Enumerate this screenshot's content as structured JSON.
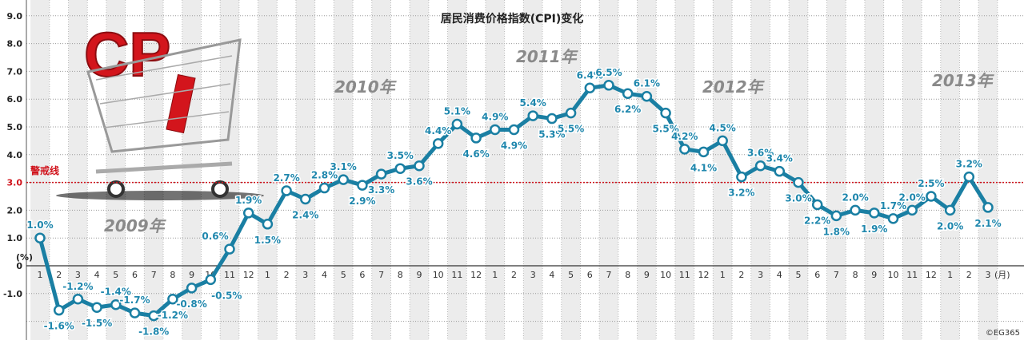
{
  "chart_data": {
    "type": "line",
    "title": "居民消费价格指数(CPI)变化",
    "ylabel": "(%)",
    "xunit": "(月)",
    "ylim": [
      -2,
      9
    ],
    "yticks": [
      "9.0",
      "8.0",
      "7.0",
      "6.0",
      "5.0",
      "4.0",
      "3.0",
      "2.0",
      "1.0",
      "0",
      "-1.0"
    ],
    "ytick_values": [
      9,
      8,
      7,
      6,
      5,
      4,
      3,
      2,
      1,
      0,
      -1
    ],
    "grid": true,
    "line_color": "#1a7fa3",
    "threshold": {
      "label": "警戒线",
      "value": 3.0,
      "color": "#d0121b"
    },
    "years": [
      "2009年",
      "2010年",
      "2011年",
      "2012年",
      "2013年"
    ],
    "x": [
      "1",
      "2",
      "3",
      "4",
      "5",
      "6",
      "7",
      "8",
      "9",
      "10",
      "11",
      "12",
      "1",
      "2",
      "3",
      "4",
      "5",
      "6",
      "7",
      "8",
      "9",
      "10",
      "11",
      "12",
      "1",
      "2",
      "3",
      "4",
      "5",
      "6",
      "7",
      "8",
      "9",
      "10",
      "11",
      "12",
      "1",
      "2",
      "3",
      "4",
      "5",
      "6",
      "7",
      "8",
      "9",
      "10",
      "11",
      "12",
      "1",
      "2",
      "3"
    ],
    "values": [
      1.0,
      -1.6,
      -1.2,
      -1.5,
      -1.4,
      -1.7,
      -1.8,
      -1.2,
      -0.8,
      -0.5,
      0.6,
      1.9,
      1.5,
      2.7,
      2.4,
      2.8,
      3.1,
      2.9,
      3.3,
      3.5,
      3.6,
      4.4,
      5.1,
      4.6,
      4.9,
      4.9,
      5.4,
      5.3,
      5.5,
      6.4,
      6.5,
      6.2,
      6.1,
      5.5,
      4.2,
      4.1,
      4.5,
      3.2,
      3.6,
      3.4,
      3.0,
      2.2,
      1.8,
      2.0,
      1.9,
      1.7,
      2.0,
      2.5,
      2.0,
      3.2,
      2.1
    ],
    "labels": [
      "1.0%",
      "-1.6%",
      "-1.2%",
      "-1.5%",
      "-1.4%",
      "-1.7%",
      "-1.8%",
      "-1.2%",
      "-0.8%",
      "-0.5%",
      "0.6%",
      "1.9%",
      "1.5%",
      "2.7%",
      "2.4%",
      "2.8%",
      "3.1%",
      "2.9%",
      "3.3%",
      "3.5%",
      "3.6%",
      "4.4%",
      "5.1%",
      "4.6%",
      "4.9%",
      "4.9%",
      "5.4%",
      "5.3%",
      "5.5%",
      "6.4%",
      "6.5%",
      "6.2%",
      "6.1%",
      "5.5%",
      "4.2%",
      "4.1%",
      "4.5%",
      "3.2%",
      "3.6%",
      "3.4%",
      "3.0%",
      "2.2%",
      "1.8%",
      "2.0%",
      "1.9%",
      "1.7%",
      "2.0%",
      "2.5%",
      "2.0%",
      "3.2%",
      "2.1%"
    ]
  },
  "logo": {
    "text": "CPI"
  },
  "credit": "©EG365"
}
